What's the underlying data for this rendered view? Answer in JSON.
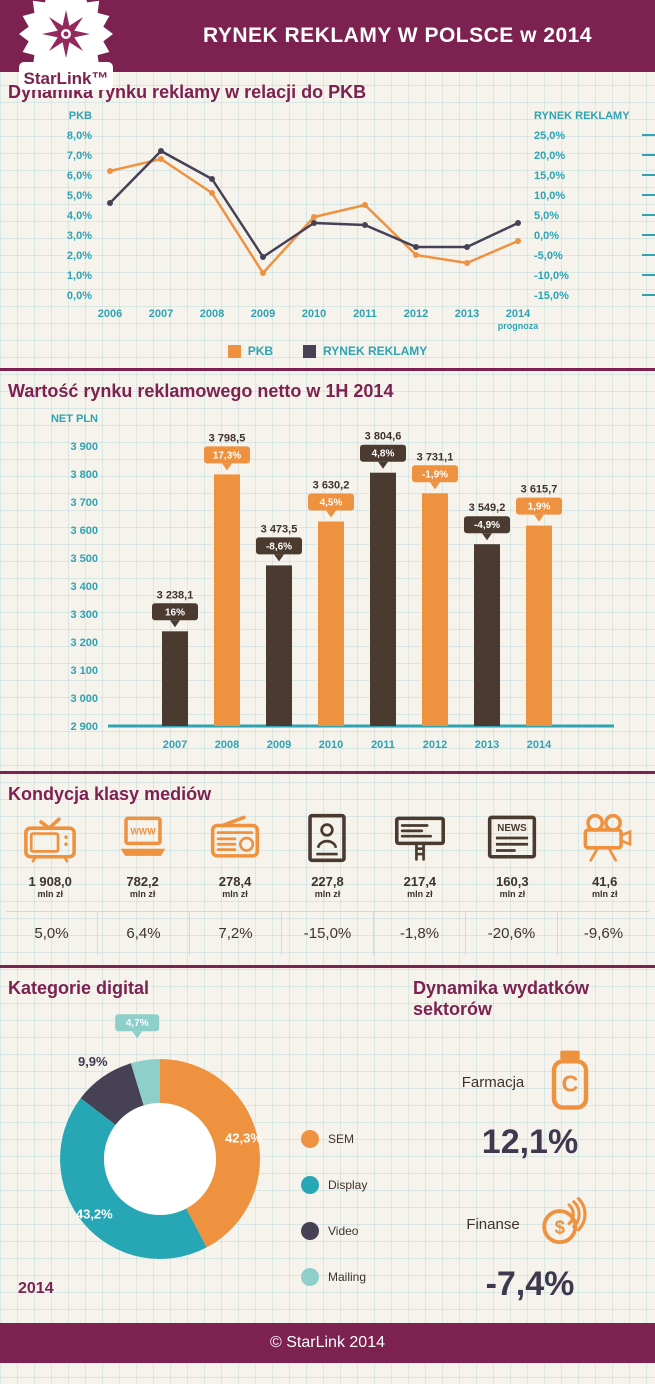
{
  "header": {
    "title": "RYNEK REKLAMY W POLSCE w 2014",
    "logo_text": "StarLink™"
  },
  "footer": {
    "text": "© StarLink 2014"
  },
  "colors": {
    "maroon": "#7c2150",
    "orange": "#ef9240",
    "dark_brown": "#4a3a2f",
    "dark_purple": "#474156",
    "teal": "#2fa3b2",
    "light_teal": "#8ecfca",
    "text_dark": "#3e332c"
  },
  "sections": {
    "gdp": {
      "title": "Dynamika rynku reklamy w relacji do PKB",
      "legend": [
        {
          "label": "PKB",
          "color": "#ef9240"
        },
        {
          "label": "RYNEK REKLAMY",
          "color": "#474156"
        }
      ]
    },
    "value": {
      "title": "Wartość rynku reklamowego netto w 1H 2014"
    },
    "media": {
      "title": "Kondycja klasy mediów",
      "items": [
        {
          "icon": "tv-icon",
          "value": "1 908,0",
          "unit": "mln zł",
          "change": "5,0%",
          "color": "orange",
          "icon_text": ""
        },
        {
          "icon": "www-laptop-icon",
          "value": "782,2",
          "unit": "mln zł",
          "change": "6,4%",
          "color": "orange",
          "icon_text": "WWW"
        },
        {
          "icon": "radio-icon",
          "value": "278,4",
          "unit": "mln zł",
          "change": "7,2%",
          "color": "orange",
          "icon_text": ""
        },
        {
          "icon": "magazine-icon",
          "value": "227,8",
          "unit": "mln zł",
          "change": "-15,0%",
          "color": "dark",
          "icon_text": ""
        },
        {
          "icon": "outdoor-icon",
          "value": "217,4",
          "unit": "mln zł",
          "change": "-1,8%",
          "color": "dark",
          "icon_text": ""
        },
        {
          "icon": "news-icon",
          "value": "160,3",
          "unit": "mln zł",
          "change": "-20,6%",
          "color": "dark",
          "icon_text": "NEWS"
        },
        {
          "icon": "cinema-icon",
          "value": "41,6",
          "unit": "mln zł",
          "change": "-9,6%",
          "color": "orange",
          "icon_text": ""
        }
      ]
    },
    "digital": {
      "title": "Kategorie digital",
      "year_label": "2014"
    },
    "sectors": {
      "title": "Dynamika wydatków sektorów",
      "items": [
        {
          "label": "Farmacja",
          "value": "12,1%",
          "icon": "pharmacy-bottle-icon",
          "icon_text": "C"
        },
        {
          "label": "Finanse",
          "value": "-7,4%",
          "icon": "finance-coins-icon",
          "icon_text": "$"
        }
      ]
    }
  },
  "chart_data": [
    {
      "type": "line",
      "title": "Dynamika rynku reklamy w relacji do PKB",
      "x": [
        2006,
        2007,
        2008,
        2009,
        2010,
        2011,
        2012,
        2013,
        2014
      ],
      "prognoza_label": "prognoza",
      "series": [
        {
          "name": "PKB",
          "axis": "left",
          "color": "#ef9240",
          "values": [
            6.2,
            6.8,
            5.1,
            1.1,
            3.9,
            4.5,
            2.0,
            1.6,
            2.7
          ]
        },
        {
          "name": "RYNEK REKLAMY",
          "axis": "right",
          "color": "#474156",
          "values": [
            8.0,
            21.0,
            14.0,
            -5.5,
            3.0,
            2.5,
            -3.0,
            -3.0,
            3.0
          ]
        }
      ],
      "left_axis": {
        "label": "PKB",
        "min": 0,
        "max": 8,
        "ticks": [
          "8,0%",
          "7,0%",
          "6,0%",
          "5,0%",
          "4,0%",
          "3,0%",
          "2,0%",
          "1,0%",
          "0,0%"
        ]
      },
      "right_axis": {
        "label": "RYNEK REKLAMY",
        "min": -15,
        "max": 25,
        "ticks": [
          "25,0%",
          "20,0%",
          "15,0%",
          "10,0%",
          "5,0%",
          "0,0%",
          "-5,0%",
          "-10,0%",
          "-15,0%"
        ]
      },
      "legend_position": "bottom",
      "grid": false
    },
    {
      "type": "bar",
      "title": "Wartość rynku reklamowego netto w 1H 2014",
      "unit": "NET PLN",
      "categories": [
        "2007",
        "2008",
        "2009",
        "2010",
        "2011",
        "2012",
        "2013",
        "2014"
      ],
      "values": [
        3238.1,
        3798.5,
        3473.5,
        3630.2,
        3804.6,
        3731.1,
        3549.2,
        3615.7
      ],
      "value_labels": [
        "3 238,1",
        "3 798,5",
        "3 473,5",
        "3 630,2",
        "3 804,6",
        "3 731,1",
        "3 549,2",
        "3 615,7"
      ],
      "change_labels": [
        "16%",
        "17,3%",
        "-8,6%",
        "4,5%",
        "4,8%",
        "-1,9%",
        "-4,9%",
        "1,9%"
      ],
      "bar_colors": [
        "dark",
        "orange",
        "dark",
        "orange",
        "dark",
        "orange",
        "dark",
        "orange"
      ],
      "ylim": [
        2900,
        3900
      ],
      "yticks": [
        "3 900",
        "3 800",
        "3 700",
        "3 600",
        "3 500",
        "3 400",
        "3 300",
        "3 200",
        "3 100",
        "3 000",
        "2 900"
      ],
      "grid": false
    },
    {
      "type": "pie",
      "title": "Kategorie digital",
      "year_label": "2014",
      "slices": [
        {
          "label": "SEM",
          "value": 42.3,
          "display": "42,3%",
          "color": "#ef9240",
          "label_style": "inside-white"
        },
        {
          "label": "Display",
          "value": 43.2,
          "display": "43,2%",
          "color": "#27a6b5",
          "label_style": "inside-white"
        },
        {
          "label": "Video",
          "value": 9.9,
          "display": "9,9%",
          "color": "#474156",
          "label_style": "outside-dark"
        },
        {
          "label": "Mailing",
          "value": 4.7,
          "display": "4,7%",
          "color": "#8ecfca",
          "label_style": "callout"
        }
      ],
      "legend_position": "right"
    }
  ]
}
